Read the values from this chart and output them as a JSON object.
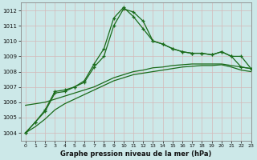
{
  "background_color": "#cce8e8",
  "grid_color": "#aacccc",
  "line_color": "#1a6b1a",
  "title": "Graphe pression niveau de la mer (hPa)",
  "xlim": [
    -0.5,
    23
  ],
  "ylim": [
    1003.5,
    1012.5
  ],
  "xticks": [
    0,
    1,
    2,
    3,
    4,
    5,
    6,
    7,
    8,
    9,
    10,
    11,
    12,
    13,
    14,
    15,
    16,
    17,
    18,
    19,
    20,
    21,
    22,
    23
  ],
  "yticks": [
    1004,
    1005,
    1006,
    1007,
    1008,
    1009,
    1010,
    1011,
    1012
  ],
  "line1_x": [
    0,
    1,
    2,
    3,
    4,
    5,
    6,
    7,
    8,
    9,
    10,
    11,
    12,
    13,
    14,
    15,
    16,
    17,
    18,
    19,
    20,
    21,
    22,
    23
  ],
  "line1_y": [
    1004.0,
    1004.7,
    1005.4,
    1006.6,
    1006.7,
    1007.0,
    1007.3,
    1008.3,
    1009.0,
    1011.0,
    1012.1,
    1011.9,
    1011.3,
    1010.0,
    1009.8,
    1009.5,
    1009.3,
    1009.2,
    1009.2,
    1009.1,
    1009.3,
    1009.0,
    1009.0,
    1008.2
  ],
  "line2_x": [
    0,
    1,
    2,
    3,
    4,
    5,
    6,
    7,
    8,
    9,
    10,
    11,
    12,
    13,
    14,
    15,
    16,
    17,
    18,
    19,
    20,
    21,
    22,
    23
  ],
  "line2_y": [
    1004.0,
    1004.7,
    1005.5,
    1006.7,
    1006.8,
    1007.0,
    1007.4,
    1008.5,
    1009.5,
    1011.5,
    1012.2,
    1011.6,
    1010.8,
    1010.0,
    1009.8,
    1009.5,
    1009.3,
    1009.2,
    1009.2,
    1009.1,
    1009.3,
    1009.0,
    1008.3,
    1008.2
  ],
  "line3_x": [
    0,
    1,
    2,
    3,
    4,
    5,
    6,
    7,
    8,
    9,
    10,
    11,
    12,
    13,
    14,
    15,
    16,
    17,
    18,
    19,
    20,
    21,
    22,
    23
  ],
  "line3_y": [
    1005.8,
    1005.9,
    1006.0,
    1006.2,
    1006.4,
    1006.6,
    1006.8,
    1007.0,
    1007.3,
    1007.6,
    1007.8,
    1008.0,
    1008.1,
    1008.25,
    1008.3,
    1008.4,
    1008.45,
    1008.5,
    1008.5,
    1008.5,
    1008.5,
    1008.4,
    1008.3,
    1008.2
  ],
  "line4_x": [
    0,
    1,
    2,
    3,
    4,
    5,
    6,
    7,
    8,
    9,
    10,
    11,
    12,
    13,
    14,
    15,
    16,
    17,
    18,
    19,
    20,
    21,
    22,
    23
  ],
  "line4_y": [
    1004.0,
    1004.4,
    1004.9,
    1005.5,
    1005.9,
    1006.2,
    1006.5,
    1006.8,
    1007.1,
    1007.4,
    1007.6,
    1007.8,
    1007.9,
    1008.0,
    1008.1,
    1008.2,
    1008.3,
    1008.35,
    1008.4,
    1008.4,
    1008.45,
    1008.3,
    1008.1,
    1008.0
  ]
}
